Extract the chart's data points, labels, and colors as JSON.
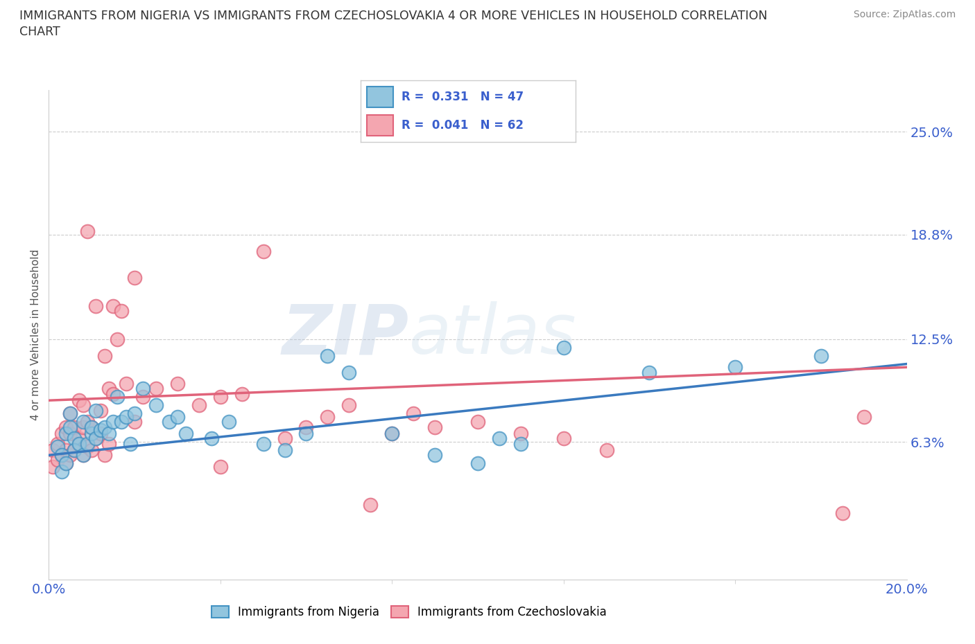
{
  "title_line1": "IMMIGRANTS FROM NIGERIA VS IMMIGRANTS FROM CZECHOSLOVAKIA 4 OR MORE VEHICLES IN HOUSEHOLD CORRELATION",
  "title_line2": "CHART",
  "source_text": "Source: ZipAtlas.com",
  "ylabel": "4 or more Vehicles in Household",
  "xlim": [
    0.0,
    0.2
  ],
  "ylim": [
    -0.02,
    0.275
  ],
  "xtick_labels": [
    "0.0%",
    "20.0%"
  ],
  "xtick_positions": [
    0.0,
    0.2
  ],
  "ytick_labels": [
    "6.3%",
    "12.5%",
    "18.8%",
    "25.0%"
  ],
  "ytick_positions": [
    0.063,
    0.125,
    0.188,
    0.25
  ],
  "nigeria_color": "#92c5de",
  "nigeria_edge": "#4393c3",
  "czech_color": "#f4a6b0",
  "czech_edge": "#e0637a",
  "nigeria_line_color": "#3a7abf",
  "czech_line_color": "#e0637a",
  "legend_R_nigeria": "0.331",
  "legend_N_nigeria": "47",
  "legend_R_czech": "0.041",
  "legend_N_czech": "62",
  "hline_positions": [
    0.063,
    0.125,
    0.188,
    0.25
  ],
  "background_color": "#ffffff",
  "nigeria_points_x": [
    0.002,
    0.003,
    0.003,
    0.004,
    0.004,
    0.005,
    0.005,
    0.006,
    0.006,
    0.007,
    0.008,
    0.008,
    0.009,
    0.01,
    0.01,
    0.011,
    0.011,
    0.012,
    0.013,
    0.014,
    0.015,
    0.016,
    0.017,
    0.018,
    0.019,
    0.02,
    0.022,
    0.025,
    0.028,
    0.03,
    0.032,
    0.038,
    0.042,
    0.05,
    0.055,
    0.06,
    0.065,
    0.07,
    0.08,
    0.09,
    0.1,
    0.105,
    0.11,
    0.12,
    0.14,
    0.16,
    0.18
  ],
  "nigeria_points_y": [
    0.06,
    0.045,
    0.055,
    0.068,
    0.05,
    0.072,
    0.08,
    0.065,
    0.058,
    0.062,
    0.055,
    0.075,
    0.062,
    0.068,
    0.072,
    0.065,
    0.082,
    0.07,
    0.072,
    0.068,
    0.075,
    0.09,
    0.075,
    0.078,
    0.062,
    0.08,
    0.095,
    0.085,
    0.075,
    0.078,
    0.068,
    0.065,
    0.075,
    0.062,
    0.058,
    0.068,
    0.115,
    0.105,
    0.068,
    0.055,
    0.05,
    0.065,
    0.062,
    0.12,
    0.105,
    0.108,
    0.115
  ],
  "czech_points_x": [
    0.001,
    0.001,
    0.002,
    0.002,
    0.003,
    0.003,
    0.004,
    0.004,
    0.004,
    0.005,
    0.005,
    0.005,
    0.006,
    0.006,
    0.007,
    0.007,
    0.007,
    0.008,
    0.008,
    0.008,
    0.009,
    0.009,
    0.009,
    0.01,
    0.01,
    0.011,
    0.011,
    0.012,
    0.012,
    0.013,
    0.013,
    0.014,
    0.014,
    0.015,
    0.015,
    0.016,
    0.017,
    0.018,
    0.02,
    0.02,
    0.022,
    0.025,
    0.03,
    0.035,
    0.04,
    0.04,
    0.045,
    0.05,
    0.055,
    0.06,
    0.065,
    0.07,
    0.075,
    0.08,
    0.085,
    0.09,
    0.1,
    0.11,
    0.12,
    0.13,
    0.185,
    0.19
  ],
  "czech_points_y": [
    0.058,
    0.048,
    0.062,
    0.052,
    0.068,
    0.055,
    0.058,
    0.072,
    0.05,
    0.055,
    0.068,
    0.08,
    0.058,
    0.072,
    0.062,
    0.088,
    0.065,
    0.072,
    0.055,
    0.085,
    0.06,
    0.075,
    0.19,
    0.058,
    0.072,
    0.065,
    0.145,
    0.068,
    0.082,
    0.055,
    0.115,
    0.062,
    0.095,
    0.145,
    0.092,
    0.125,
    0.142,
    0.098,
    0.075,
    0.162,
    0.09,
    0.095,
    0.098,
    0.085,
    0.09,
    0.048,
    0.092,
    0.178,
    0.065,
    0.072,
    0.078,
    0.085,
    0.025,
    0.068,
    0.08,
    0.072,
    0.075,
    0.068,
    0.065,
    0.058,
    0.02,
    0.078
  ],
  "nigeria_trendline_x": [
    0.0,
    0.2
  ],
  "nigeria_trendline_y_start": 0.055,
  "nigeria_trendline_y_end": 0.11,
  "czech_trendline_y_start": 0.088,
  "czech_trendline_y_end": 0.108
}
